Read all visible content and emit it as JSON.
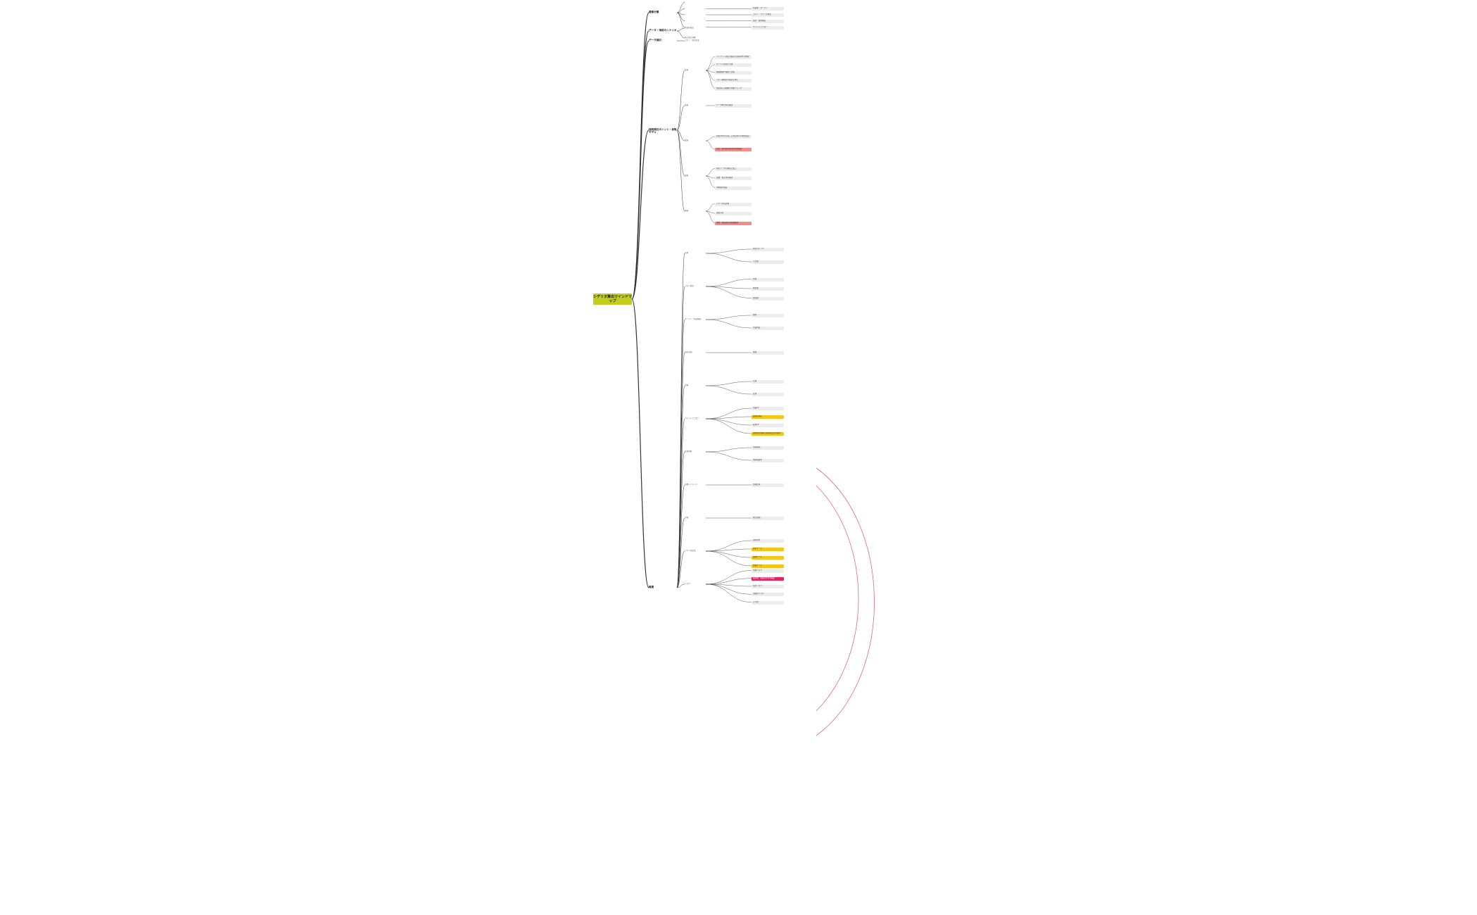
{
  "root": {
    "label": "シデリタ算出マインドマップ"
  },
  "colors": {
    "line": "#333333",
    "root_bg": "#c3cd1e",
    "highlight_yellow": "#f5c518",
    "highlight_red": "#f48a8a",
    "highlight_crimson": "#e0245e",
    "relationship": "#e06a80"
  },
  "branches": [
    {
      "label": "要素分類",
      "children": [
        {
          "label": "-"
        },
        {
          "label": "-",
          "children": [
            {
              "label": "利益率・マージン"
            }
          ]
        },
        {
          "label": "-",
          "children": [
            {
              "label": "コスト・プライス算出"
            }
          ]
        },
        {
          "label": "-",
          "children": [
            {
              "label": "資産・負債構造"
            }
          ]
        },
        {
          "label": "-",
          "children": [
            {
              "label": "キャッシュフロー"
            }
          ]
        }
      ]
    },
    {
      "label": "データ・項目のシナリオ",
      "children": [
        {
          "label": "項目別設定"
        },
        {
          "label": "補正値と係数"
        }
      ]
    },
    {
      "label": "データ検討",
      "children": [
        {
          "label": "コスト・算出方法"
        }
      ]
    },
    {
      "label": "個別検討ポイント・参照モデル",
      "children": [
        {
          "label": "要素",
          "children": [
            {
              "label": "インプット項目の確認と前提条件の整理"
            },
            {
              "label": "マージン算出の手順"
            },
            {
              "label": "関連数値の抽出と比較"
            },
            {
              "label": "コスト構成比の確認と修正"
            },
            {
              "label": "想定値と実績値の乖離チェック"
            }
          ]
        },
        {
          "label": "要素",
          "children": [
            {
              "label": "データ整合性の確認"
            }
          ]
        },
        {
          "label": "要素",
          "children": [
            {
              "label": "前提条件の見直しと再計算の手順を確認"
            },
            {
              "label": "注意：異常値の検出時は再確認",
              "style": "red"
            }
          ]
        },
        {
          "label": "要素",
          "children": [
            {
              "label": "参照データの取得と加工"
            },
            {
              "label": "係数・補正値の確認"
            },
            {
              "label": "中間値の検証"
            }
          ]
        },
        {
          "label": "関連",
          "children": [
            {
              "label": "シナリオ別試算"
            },
            {
              "label": "感度分析"
            },
            {
              "label": "重要：前提崩れの影響範囲",
              "style": "red"
            }
          ]
        }
      ]
    },
    {
      "label": "概要",
      "children": [
        {
          "label": "基本",
          "children": [
            {
              "label": "算出ロジック"
            },
            {
              "label": "入力値"
            }
          ]
        },
        {
          "label": "コスト算出",
          "children": [
            {
              "label": "原価"
            },
            {
              "label": "販管費"
            },
            {
              "label": "間接費"
            }
          ]
        },
        {
          "label": "マージン・利益構造",
          "children": [
            {
              "label": "粗利"
            },
            {
              "label": "営業利益"
            }
          ]
        },
        {
          "label": "資産評価",
          "children": [
            {
              "label": "簿価"
            }
          ]
        },
        {
          "label": "負債",
          "children": [
            {
              "label": "短期"
            },
            {
              "label": "長期"
            }
          ]
        },
        {
          "label": "キャッシュフロー",
          "children": [
            {
              "label": "営業CF"
            },
            {
              "label": "要確認項目",
              "style": "yellow"
            },
            {
              "label": "投資CF"
            },
            {
              "label": "調整後の数値と関連項目の再評価",
              "style": "yellow"
            }
          ]
        },
        {
          "label": "投資判断",
          "children": [
            {
              "label": "回収期間"
            },
            {
              "label": "内部収益率"
            }
          ]
        },
        {
          "label": "財務レバレッジ",
          "children": [
            {
              "label": "負債比率"
            }
          ]
        },
        {
          "label": "評価",
          "children": [
            {
              "label": "総合評価"
            }
          ]
        },
        {
          "label": "シナリオ比較",
          "children": [
            {
              "label": "前提条件"
            },
            {
              "label": "基準ケース",
              "style": "yellow"
            },
            {
              "label": "楽観ケース",
              "style": "yellow"
            },
            {
              "label": "悲観ケース",
              "style": "yellow"
            }
          ]
        },
        {
          "label": "リスク",
          "children": [
            {
              "label": "市場リスク"
            },
            {
              "label": "最重要：前提条件の再検証",
              "style": "crimson"
            },
            {
              "label": "信用リスク"
            },
            {
              "label": "流動性リスク"
            },
            {
              "label": "その他"
            }
          ]
        }
      ]
    }
  ]
}
